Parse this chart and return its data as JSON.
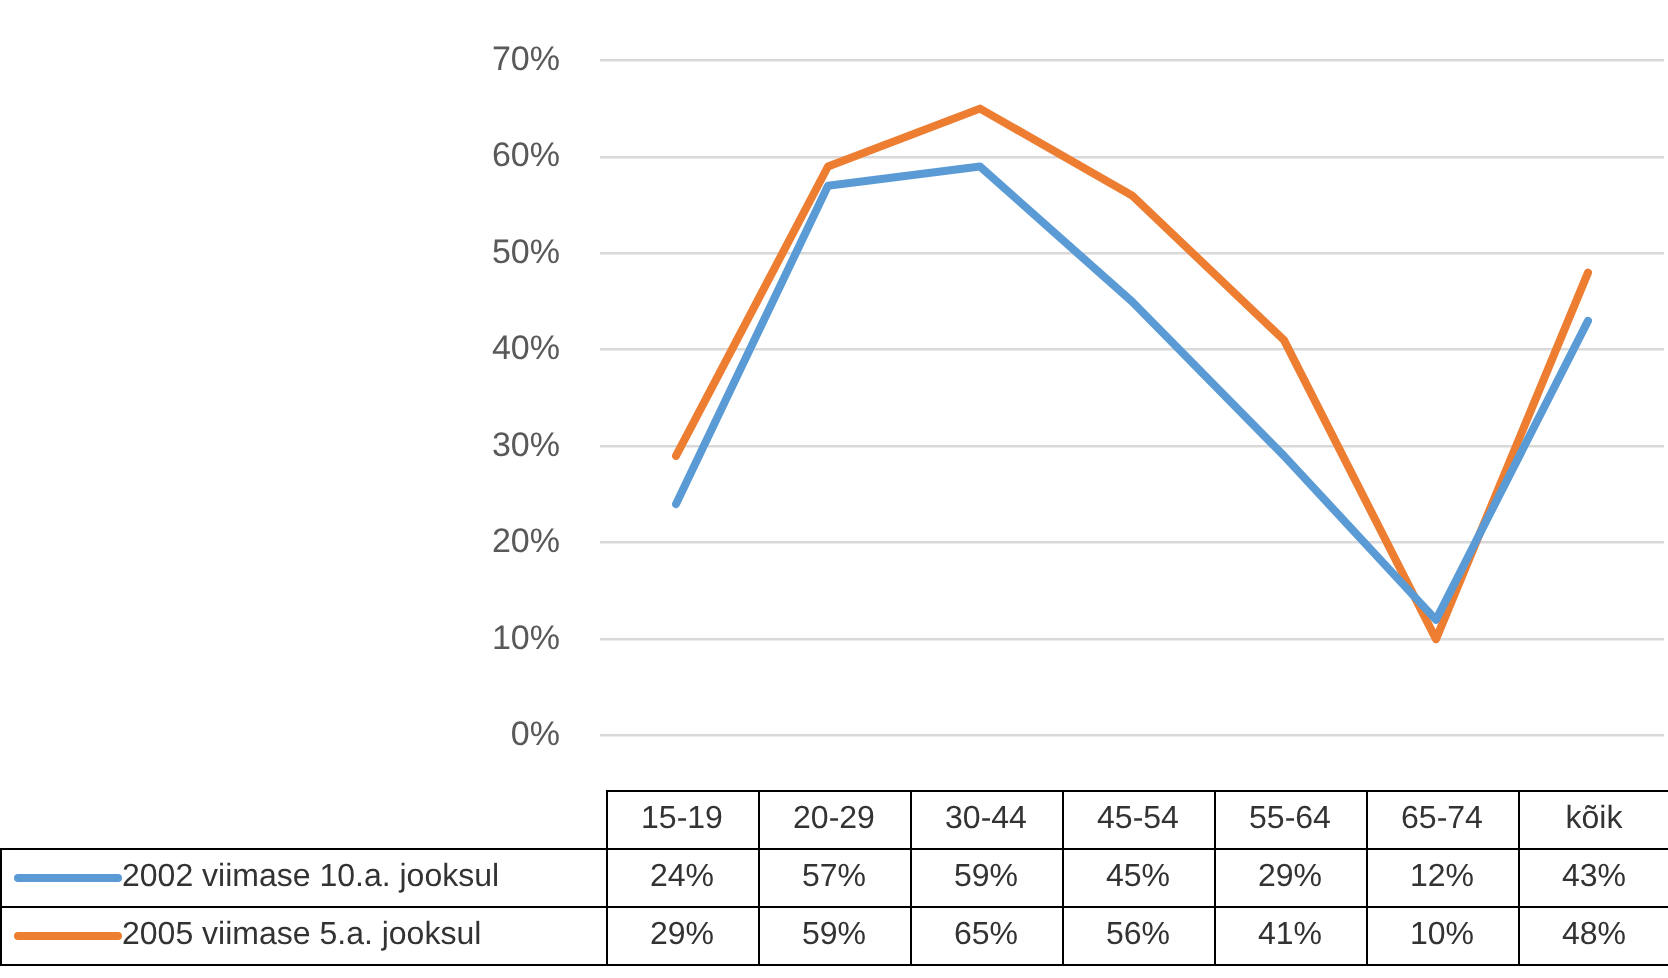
{
  "chart_data": {
    "type": "line",
    "categories": [
      "15-19",
      "20-29",
      "30-44",
      "45-54",
      "55-64",
      "65-74",
      "kõik"
    ],
    "series": [
      {
        "name": "2002 viimase 10.a. jooksul",
        "color": "#5b9bd5",
        "values": [
          24,
          57,
          59,
          45,
          29,
          12,
          43
        ],
        "value_labels": [
          "24%",
          "57%",
          "59%",
          "45%",
          "29%",
          "12%",
          "43%"
        ]
      },
      {
        "name": "2005 viimase 5.a. jooksul",
        "color": "#ed7d31",
        "values": [
          29,
          59,
          65,
          56,
          41,
          10,
          48
        ],
        "value_labels": [
          "29%",
          "59%",
          "65%",
          "56%",
          "41%",
          "10%",
          "48%"
        ]
      }
    ],
    "ylim": [
      0,
      70
    ],
    "yticks": [
      {
        "value": 0,
        "label": "0%"
      },
      {
        "value": 10,
        "label": "10%"
      },
      {
        "value": 20,
        "label": "20%"
      },
      {
        "value": 30,
        "label": "30%"
      },
      {
        "value": 40,
        "label": "40%"
      },
      {
        "value": 50,
        "label": "50%"
      },
      {
        "value": 60,
        "label": "60%"
      },
      {
        "value": 70,
        "label": "70%"
      }
    ],
    "grid": "y",
    "legend": "bottom",
    "marker": "none",
    "line_style": "solid"
  }
}
